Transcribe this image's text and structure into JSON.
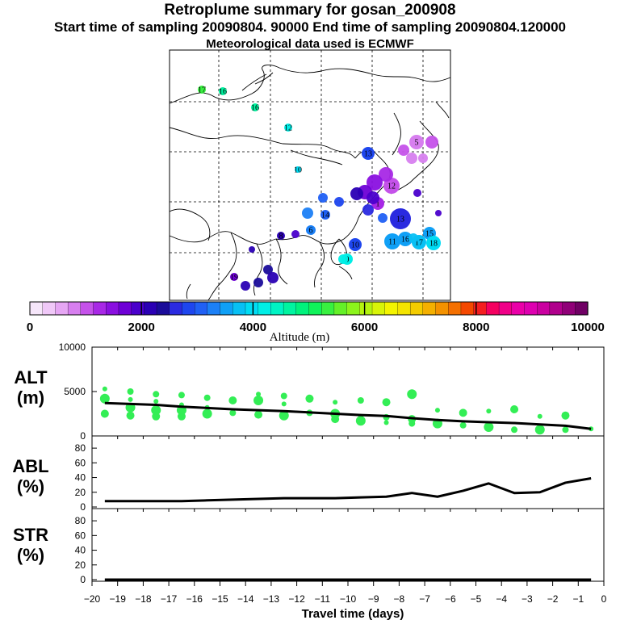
{
  "header": {
    "title": "Retroplume summary for gosan_200908",
    "subtitle": "Start time of sampling 20090804. 90000     End time of sampling 20090804.120000",
    "met_line": "Meteorological data used is ECMWF"
  },
  "colorbar": {
    "label": "Altitude (m)",
    "min": 0,
    "max": 10000,
    "ticks": [
      0,
      2000,
      4000,
      6000,
      8000,
      10000
    ],
    "tick_labels": [
      "0",
      "2000",
      "4000",
      "6000",
      "8000",
      "10000"
    ],
    "colors": [
      "#f6e6fa",
      "#f0c8f8",
      "#e6a6f4",
      "#d77fef",
      "#c552ea",
      "#a828e6",
      "#8a10e0",
      "#6e00d6",
      "#4a00cc",
      "#2a00b4",
      "#1a0c9a",
      "#2a2ae0",
      "#1e46ee",
      "#2060f4",
      "#1c80f6",
      "#10a0f6",
      "#08c0f4",
      "#00dcf4",
      "#00eee6",
      "#00f4c4",
      "#00f4a0",
      "#00f27c",
      "#10f25a",
      "#38f040",
      "#64f028",
      "#8cf41c",
      "#b4f410",
      "#d8f408",
      "#f4f400",
      "#f4e400",
      "#f4cc00",
      "#f4b000",
      "#f49200",
      "#f47000",
      "#f44800",
      "#f41e20",
      "#f40060",
      "#f00088",
      "#ea00a8",
      "#de00b0",
      "#ca00a0",
      "#b0008c",
      "#900078",
      "#700064"
    ]
  },
  "map": {
    "points": [
      {
        "label": "17",
        "color": "#38f040"
      },
      {
        "label": "16",
        "color": "#00f4a0"
      },
      {
        "label": "16",
        "color": "#00f4a0"
      },
      {
        "label": "12",
        "color": "#00eee6"
      },
      {
        "label": "10",
        "color": "#00dcf4"
      },
      {
        "label": "13",
        "color": "#1e46ee"
      },
      {
        "label": "6",
        "color": "#1c80f6"
      },
      {
        "label": "11",
        "color": "#10a0f6"
      },
      {
        "label": "14",
        "color": "#2060f4"
      },
      {
        "label": "13",
        "color": "#2a2ae0"
      },
      {
        "label": "10",
        "color": "#1e46ee"
      },
      {
        "label": "16",
        "color": "#10a0f6"
      },
      {
        "label": "15",
        "color": "#10a0f6"
      },
      {
        "label": "17",
        "color": "#08c0f4"
      },
      {
        "label": "18",
        "color": "#00dcf4"
      },
      {
        "label": "9",
        "color": "#00eee6"
      },
      {
        "label": "12",
        "color": "#c552ea"
      },
      {
        "label": "5",
        "color": "#d77fef"
      },
      {
        "label": "8",
        "color": "#2a00b4"
      },
      {
        "label": "1",
        "color": "#a828e6"
      },
      {
        "label": "19",
        "color": "#6e00d6"
      }
    ]
  },
  "chart_data": [
    {
      "type": "line",
      "panel": "ALT",
      "ylabel": "ALT (m)",
      "xlabel": "Travel time (days)",
      "xlim": [
        -20,
        0
      ],
      "ylim": [
        0,
        10000
      ],
      "yticks": [
        0,
        5000,
        10000
      ],
      "x": [
        -19.5,
        -18.5,
        -17.5,
        -16.5,
        -15.5,
        -14.5,
        -13.5,
        -12.5,
        -11.5,
        -10.5,
        -9.5,
        -8.5,
        -7.5,
        -6.5,
        -5.5,
        -4.5,
        -3.5,
        -2.5,
        -1.5,
        -0.5
      ],
      "values": [
        3700,
        3600,
        3500,
        3300,
        3150,
        3000,
        2900,
        2800,
        2650,
        2500,
        2350,
        2250,
        2000,
        1800,
        1650,
        1550,
        1450,
        1300,
        1150,
        800
      ],
      "scatter": [
        {
          "x": -19.5,
          "y": 5300
        },
        {
          "x": -19.5,
          "y": 4200
        },
        {
          "x": -19.5,
          "y": 2500
        },
        {
          "x": -18.5,
          "y": 5000
        },
        {
          "x": -18.5,
          "y": 4100
        },
        {
          "x": -18.5,
          "y": 3200
        },
        {
          "x": -18.5,
          "y": 2300
        },
        {
          "x": -17.5,
          "y": 4700
        },
        {
          "x": -17.5,
          "y": 3900
        },
        {
          "x": -17.5,
          "y": 2900
        },
        {
          "x": -17.5,
          "y": 2200
        },
        {
          "x": -16.5,
          "y": 4600
        },
        {
          "x": -16.5,
          "y": 3500
        },
        {
          "x": -16.5,
          "y": 2900
        },
        {
          "x": -16.5,
          "y": 2200
        },
        {
          "x": -15.5,
          "y": 4300
        },
        {
          "x": -15.5,
          "y": 3200
        },
        {
          "x": -15.5,
          "y": 2500
        },
        {
          "x": -14.5,
          "y": 4000
        },
        {
          "x": -14.5,
          "y": 2600
        },
        {
          "x": -13.5,
          "y": 4700
        },
        {
          "x": -13.5,
          "y": 4000
        },
        {
          "x": -13.5,
          "y": 2400
        },
        {
          "x": -12.5,
          "y": 4500
        },
        {
          "x": -12.5,
          "y": 3600
        },
        {
          "x": -12.5,
          "y": 2300
        },
        {
          "x": -11.5,
          "y": 4200
        },
        {
          "x": -11.5,
          "y": 2600
        },
        {
          "x": -10.5,
          "y": 3800
        },
        {
          "x": -10.5,
          "y": 2500
        },
        {
          "x": -10.5,
          "y": 1900
        },
        {
          "x": -9.5,
          "y": 4000
        },
        {
          "x": -9.5,
          "y": 2200
        },
        {
          "x": -9.5,
          "y": 1700
        },
        {
          "x": -8.5,
          "y": 3800
        },
        {
          "x": -8.5,
          "y": 2100
        },
        {
          "x": -8.5,
          "y": 1500
        },
        {
          "x": -7.5,
          "y": 4700
        },
        {
          "x": -7.5,
          "y": 1900
        },
        {
          "x": -7.5,
          "y": 1400
        },
        {
          "x": -6.5,
          "y": 2900
        },
        {
          "x": -6.5,
          "y": 1400
        },
        {
          "x": -5.5,
          "y": 2600
        },
        {
          "x": -5.5,
          "y": 1200
        },
        {
          "x": -4.5,
          "y": 2800
        },
        {
          "x": -4.5,
          "y": 1000
        },
        {
          "x": -3.5,
          "y": 3000
        },
        {
          "x": -3.5,
          "y": 700
        },
        {
          "x": -2.5,
          "y": 2200
        },
        {
          "x": -2.5,
          "y": 700
        },
        {
          "x": -1.5,
          "y": 2300
        },
        {
          "x": -1.5,
          "y": 700
        },
        {
          "x": -0.5,
          "y": 800
        }
      ]
    },
    {
      "type": "line",
      "panel": "ABL",
      "ylabel": "ABL (%)",
      "xlabel": "Travel time (days)",
      "xlim": [
        -20,
        0
      ],
      "ylim": [
        0,
        90
      ],
      "yticks": [
        0,
        20,
        40,
        60,
        80
      ],
      "x": [
        -19.5,
        -18.5,
        -17.5,
        -16.5,
        -15.5,
        -14.5,
        -13.5,
        -12.5,
        -11.5,
        -10.5,
        -9.5,
        -8.5,
        -7.5,
        -6.5,
        -5.5,
        -4.5,
        -3.5,
        -2.5,
        -1.5,
        -0.5
      ],
      "values": [
        8,
        8,
        8,
        8,
        9,
        10,
        11,
        12,
        12,
        12,
        13,
        14,
        19,
        14,
        22,
        32,
        19,
        20,
        33,
        39
      ]
    },
    {
      "type": "line",
      "panel": "STR",
      "ylabel": "STR (%)",
      "xlabel": "Travel time (days)",
      "xlim": [
        -20,
        0
      ],
      "ylim": [
        0,
        90
      ],
      "yticks": [
        0,
        20,
        40,
        60,
        80
      ],
      "x": [
        -19.5,
        -18.5,
        -17.5,
        -16.5,
        -15.5,
        -14.5,
        -13.5,
        -12.5,
        -11.5,
        -10.5,
        -9.5,
        -8.5,
        -7.5,
        -6.5,
        -5.5,
        -4.5,
        -3.5,
        -2.5,
        -1.5,
        -0.5
      ],
      "values": [
        0,
        0,
        0,
        0,
        0,
        0,
        0,
        0,
        0,
        0,
        0,
        0,
        0,
        0,
        0,
        0,
        0,
        0,
        0,
        0
      ]
    }
  ],
  "xaxis": {
    "ticks": [
      -20,
      -19,
      -18,
      -17,
      -16,
      -15,
      -14,
      -13,
      -12,
      -11,
      -10,
      -9,
      -8,
      -7,
      -6,
      -5,
      -4,
      -3,
      -2,
      -1,
      0
    ],
    "tick_labels": [
      "−20",
      "−19",
      "−18",
      "−17",
      "−16",
      "−15",
      "−14",
      "−13",
      "−12",
      "−11",
      "−10",
      "−9",
      "−8",
      "−7",
      "−6",
      "−5",
      "−4",
      "−3",
      "−2",
      "−1",
      "0"
    ]
  },
  "style": {
    "scatter_color": "#33ee55",
    "line_color": "#000000"
  }
}
